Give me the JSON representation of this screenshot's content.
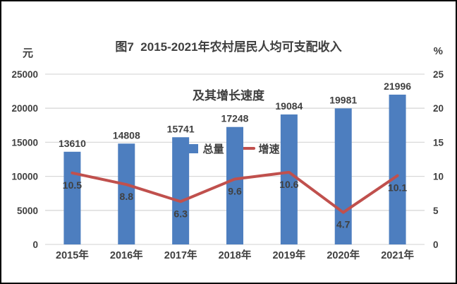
{
  "title": {
    "line1": "图7  2015-2021年农村居民人均可支配收入",
    "line2": "及其增长速度"
  },
  "legend": {
    "bar_label": "总量",
    "line_label": "增速"
  },
  "axes": {
    "left_unit": "元",
    "right_unit": "%"
  },
  "colors": {
    "bar": "#4d7ebf",
    "line": "#c0504d",
    "grid": "#d9d9d9",
    "text": "#404040"
  },
  "chart_data": {
    "type": "bar+line combo",
    "title": "图7 2015-2021年农村居民人均可支配收入及其增长速度",
    "categories": [
      "2015年",
      "2016年",
      "2017年",
      "2018年",
      "2019年",
      "2020年",
      "2021年"
    ],
    "series": [
      {
        "name": "总量",
        "type": "bar",
        "axis": "left",
        "color": "#4d7ebf",
        "values": [
          13610,
          14808,
          15741,
          17248,
          19084,
          19981,
          21996
        ]
      },
      {
        "name": "增速",
        "type": "line",
        "axis": "right",
        "color": "#c0504d",
        "values": [
          10.5,
          8.8,
          6.3,
          9.6,
          10.6,
          4.7,
          10.1
        ]
      }
    ],
    "left_axis": {
      "unit": "元",
      "min": 0,
      "max": 25000,
      "step": 5000,
      "ticks": [
        0,
        5000,
        10000,
        15000,
        20000,
        25000
      ]
    },
    "right_axis": {
      "unit": "%",
      "min": 0,
      "max": 25,
      "step": 5,
      "ticks": [
        0,
        5,
        10,
        15,
        20,
        25
      ]
    },
    "grid": true,
    "legend_position": "top"
  }
}
